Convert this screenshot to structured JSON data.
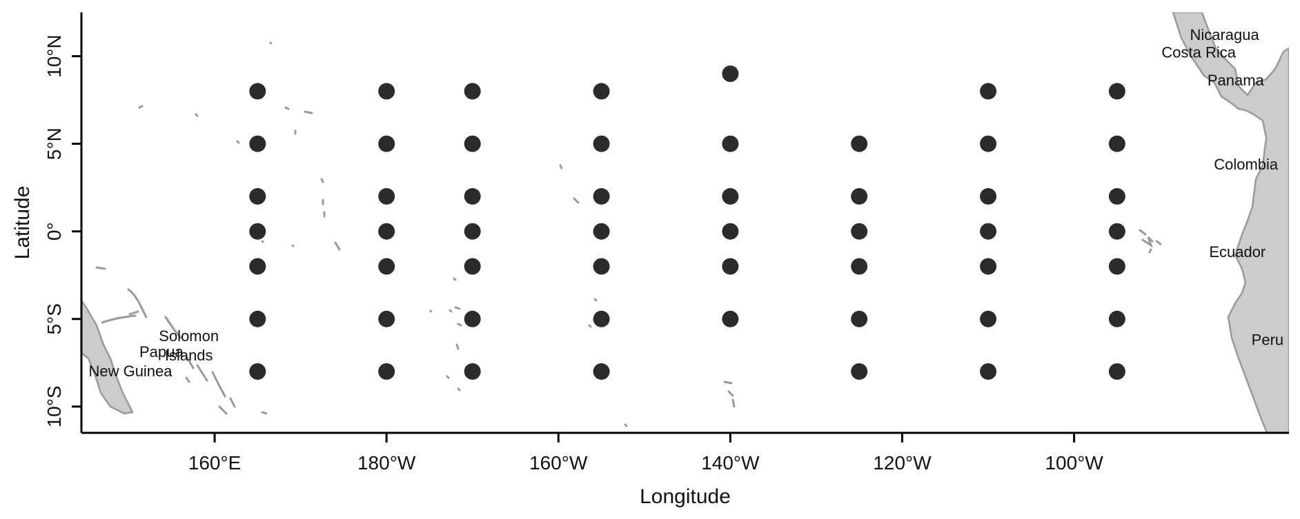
{
  "map": {
    "x_axis_title": "Longitude",
    "y_axis_title": "Latitude",
    "x_ticks": [
      {
        "value": 160,
        "label": "160°E"
      },
      {
        "value": 180,
        "label": "180°W"
      },
      {
        "value": 200,
        "label": "160°W"
      },
      {
        "value": 220,
        "label": "140°W"
      },
      {
        "value": 240,
        "label": "120°W"
      },
      {
        "value": 260,
        "label": "100°W"
      }
    ],
    "y_ticks": [
      {
        "value": 10,
        "label": "10°N"
      },
      {
        "value": 5,
        "label": "5°N"
      },
      {
        "value": 0,
        "label": "0°"
      },
      {
        "value": -5,
        "label": "5°S"
      },
      {
        "value": -10,
        "label": "10°S"
      }
    ],
    "lon_range": [
      144.5,
      285
    ],
    "lat_range": [
      -11.5,
      12.5
    ],
    "point_color": "#2b2b2b",
    "land_color": "#cccccc",
    "coast_color": "#999999",
    "country_labels": [
      {
        "name": "Nicaragua",
        "lon": 277.5,
        "lat": 11.2
      },
      {
        "name": "Costa Rica",
        "lon": 274.5,
        "lat": 10.2
      },
      {
        "name": "Panama",
        "lon": 278.8,
        "lat": 8.6
      },
      {
        "name": "Colombia",
        "lon": 280.0,
        "lat": 3.8
      },
      {
        "name": "Ecuador",
        "lon": 279.0,
        "lat": -1.2
      },
      {
        "name": "Peru",
        "lon": 282.5,
        "lat": -6.2
      },
      {
        "name": "Solomon",
        "lon": 157.0,
        "lat": -6.0
      },
      {
        "name": "Islands",
        "lon": 157.0,
        "lat": -7.1
      },
      {
        "name": "Papua",
        "lon": 153.8,
        "lat": -6.9
      },
      {
        "name": "New Guinea",
        "lon": 150.2,
        "lat": -8.0
      }
    ]
  },
  "chart_data": {
    "type": "scatter",
    "xlabel": "Longitude",
    "ylabel": "Latitude",
    "xlim": [
      144.5,
      285
    ],
    "ylim": [
      -11.5,
      12.5
    ],
    "points": [
      {
        "lon": 165,
        "lat": 8
      },
      {
        "lon": 165,
        "lat": 5
      },
      {
        "lon": 165,
        "lat": 2
      },
      {
        "lon": 165,
        "lat": 0
      },
      {
        "lon": 165,
        "lat": -2
      },
      {
        "lon": 165,
        "lat": -5
      },
      {
        "lon": 165,
        "lat": -8
      },
      {
        "lon": 180,
        "lat": 8
      },
      {
        "lon": 180,
        "lat": 5
      },
      {
        "lon": 180,
        "lat": 2
      },
      {
        "lon": 180,
        "lat": 0
      },
      {
        "lon": 180,
        "lat": -2
      },
      {
        "lon": 180,
        "lat": -5
      },
      {
        "lon": 180,
        "lat": -8
      },
      {
        "lon": 190,
        "lat": 8
      },
      {
        "lon": 190,
        "lat": 5
      },
      {
        "lon": 190,
        "lat": 2
      },
      {
        "lon": 190,
        "lat": 0
      },
      {
        "lon": 190,
        "lat": -2
      },
      {
        "lon": 190,
        "lat": -5
      },
      {
        "lon": 190,
        "lat": -8
      },
      {
        "lon": 205,
        "lat": 8
      },
      {
        "lon": 205,
        "lat": 5
      },
      {
        "lon": 205,
        "lat": 2
      },
      {
        "lon": 205,
        "lat": 0
      },
      {
        "lon": 205,
        "lat": -2
      },
      {
        "lon": 205,
        "lat": -5
      },
      {
        "lon": 205,
        "lat": -8
      },
      {
        "lon": 220,
        "lat": 9
      },
      {
        "lon": 220,
        "lat": 5
      },
      {
        "lon": 220,
        "lat": 2
      },
      {
        "lon": 220,
        "lat": 0
      },
      {
        "lon": 220,
        "lat": -2
      },
      {
        "lon": 220,
        "lat": -5
      },
      {
        "lon": 235,
        "lat": 5
      },
      {
        "lon": 235,
        "lat": 2
      },
      {
        "lon": 235,
        "lat": 0
      },
      {
        "lon": 235,
        "lat": -2
      },
      {
        "lon": 235,
        "lat": -5
      },
      {
        "lon": 235,
        "lat": -8
      },
      {
        "lon": 250,
        "lat": 8
      },
      {
        "lon": 250,
        "lat": 5
      },
      {
        "lon": 250,
        "lat": 2
      },
      {
        "lon": 250,
        "lat": 0
      },
      {
        "lon": 250,
        "lat": -2
      },
      {
        "lon": 250,
        "lat": -5
      },
      {
        "lon": 250,
        "lat": -8
      },
      {
        "lon": 265,
        "lat": 8
      },
      {
        "lon": 265,
        "lat": 5
      },
      {
        "lon": 265,
        "lat": 2
      },
      {
        "lon": 265,
        "lat": 0
      },
      {
        "lon": 265,
        "lat": -2
      },
      {
        "lon": 265,
        "lat": -5
      },
      {
        "lon": 265,
        "lat": -8
      }
    ]
  }
}
